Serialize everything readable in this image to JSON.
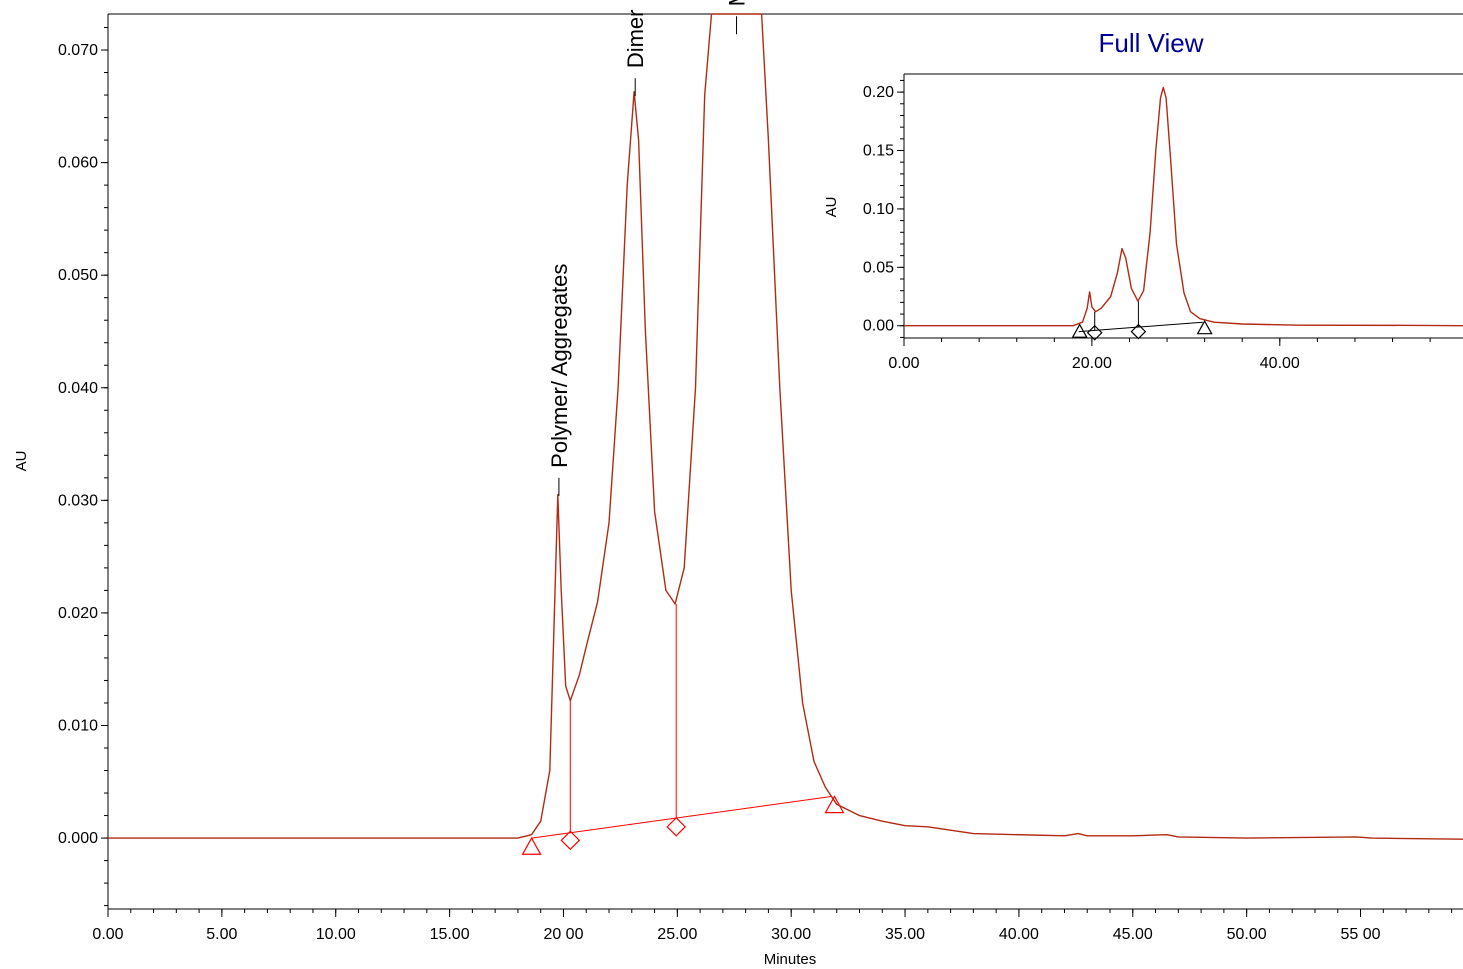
{
  "chart_data": [
    {
      "type": "line",
      "xlabel": "Minutes",
      "ylabel": "AU",
      "xlim": [
        0,
        59.5
      ],
      "ylim": [
        -0.0063,
        0.0732
      ],
      "xticks": [
        "0.00",
        "5.00",
        "10.00",
        "15.00",
        "20 00",
        "25.00",
        "30.00",
        "35.00",
        "40.00",
        "45.00",
        "50.00",
        "55 00"
      ],
      "xtick_values": [
        0,
        5,
        10,
        15,
        20,
        25,
        30,
        35,
        40,
        45,
        50,
        55
      ],
      "yticks": [
        "0.000",
        "0.010",
        "0.020",
        "0.030",
        "0.040",
        "0.050",
        "0.060",
        "0.070"
      ],
      "ytick_values": [
        0,
        0.01,
        0.02,
        0.03,
        0.04,
        0.05,
        0.06,
        0.07
      ],
      "series": [
        {
          "x": [
            0,
            10,
            18,
            18.6,
            19.0,
            19.4,
            19.6,
            19.75,
            19.9,
            20.1,
            20.3,
            20.7,
            21.0,
            21.5,
            22.0,
            22.4,
            22.8,
            23.1,
            23.3,
            23.6,
            24.0,
            24.5,
            24.9,
            25.3,
            25.8,
            26.2,
            26.5,
            28.7,
            29.0,
            29.5,
            30.0,
            30.5,
            31.0,
            31.5,
            32.0,
            33.0,
            34.0,
            35.0,
            36.0,
            38.0,
            42.0,
            42.6,
            43.0,
            45.0,
            46.5,
            47.0,
            50.0,
            54.8,
            55.5,
            59.5
          ],
          "y": [
            0,
            0,
            0,
            0.0003,
            0.0015,
            0.006,
            0.02,
            0.0305,
            0.022,
            0.0135,
            0.0122,
            0.0145,
            0.017,
            0.021,
            0.028,
            0.04,
            0.058,
            0.0663,
            0.062,
            0.045,
            0.029,
            0.022,
            0.0208,
            0.024,
            0.04,
            0.066,
            0.0732,
            0.0732,
            0.062,
            0.04,
            0.022,
            0.012,
            0.0068,
            0.0045,
            0.003,
            0.002,
            0.0015,
            0.0011,
            0.001,
            0.0004,
            0.0002,
            0.0004,
            0.0002,
            0.0002,
            0.0003,
            0.0001,
            0.0,
            0.0001,
            0.0,
            -0.0001
          ]
        }
      ],
      "baseline": {
        "x": [
          18.6,
          31.8
        ],
        "y": [
          0,
          0.0037
        ]
      },
      "drop_lines": [
        {
          "x": 20.3,
          "y": 0.0122
        },
        {
          "x": 24.95,
          "y": 0.0208
        }
      ],
      "markers": [
        {
          "shape": "triangle",
          "x": 18.6,
          "y": -0.0008
        },
        {
          "shape": "diamond",
          "x": 20.3,
          "y": -0.0002
        },
        {
          "shape": "diamond",
          "x": 24.95,
          "y": 0.001
        },
        {
          "shape": "triangle",
          "x": 31.9,
          "y": 0.0029
        }
      ],
      "annotations": [
        {
          "text": "Polymer/ Aggregates",
          "x": 19.8,
          "y": 0.032
        },
        {
          "text": "Dimer",
          "x": 23.15,
          "y": 0.0675
        },
        {
          "text": "Monome",
          "x": 27.6,
          "y": 0.073
        }
      ]
    },
    {
      "type": "line",
      "title": "Full View",
      "ylabel": "AU",
      "xlim": [
        0,
        59.5
      ],
      "ylim": [
        -0.0105,
        0.2155
      ],
      "xticks": [
        "0.00",
        "20.00",
        "40.00"
      ],
      "xtick_values": [
        0,
        20,
        40
      ],
      "yticks": [
        "0.00",
        "0.05",
        "0.10",
        "0.15",
        "0.20"
      ],
      "ytick_values": [
        0,
        0.05,
        0.1,
        0.15,
        0.2
      ],
      "series": [
        {
          "x": [
            0,
            18,
            19.0,
            19.5,
            19.75,
            20.0,
            20.4,
            21.0,
            22.0,
            22.7,
            23.2,
            23.6,
            24.2,
            24.9,
            25.5,
            26.2,
            26.8,
            27.3,
            27.6,
            27.9,
            28.4,
            29.0,
            29.8,
            30.5,
            31.5,
            33,
            36,
            42,
            55,
            59.5
          ],
          "y": [
            0,
            0,
            0.003,
            0.015,
            0.029,
            0.016,
            0.012,
            0.015,
            0.025,
            0.045,
            0.066,
            0.058,
            0.032,
            0.021,
            0.03,
            0.08,
            0.15,
            0.195,
            0.204,
            0.195,
            0.14,
            0.07,
            0.028,
            0.012,
            0.006,
            0.003,
            0.0015,
            0.0005,
            0.0003,
            0.0
          ]
        }
      ],
      "baseline": {
        "x": [
          18.6,
          31.8
        ],
        "y": [
          -0.005,
          0.003
        ]
      },
      "drop_lines": [
        {
          "x": 20.3,
          "y": 0.012
        },
        {
          "x": 24.95,
          "y": 0.021
        }
      ],
      "markers": [
        {
          "shape": "triangle",
          "x": 18.7,
          "y": -0.005
        },
        {
          "shape": "diamond",
          "x": 20.3,
          "y": -0.006
        },
        {
          "shape": "diamond",
          "x": 24.95,
          "y": -0.005
        },
        {
          "shape": "triangle",
          "x": 32.0,
          "y": -0.002
        }
      ]
    }
  ],
  "colors": {
    "trace": "#b22a12",
    "integration": "#ff0000",
    "inset_integration": "#000000",
    "title": "#000099"
  }
}
